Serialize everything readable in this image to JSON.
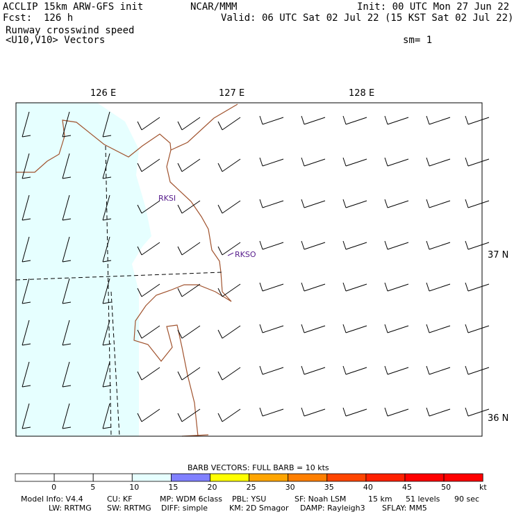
{
  "header": {
    "line1_left": "ACCLIP 15km ARW-GFS init",
    "line1_center": "NCAR/MMM",
    "line1_right": "Init: 00 UTC Mon 27 Jun 22",
    "line2_left": "Fcst:  126 h",
    "line2_right": "Valid: 06 UTC Sat 02 Jul 22 (15 KST Sat 02 Jul 22)",
    "line3_left": "Runway crosswind speed",
    "line4_left": "<U10,V10> Vectors",
    "line4_right": "sm= 1"
  },
  "axes": {
    "lon_labels": [
      "126 E",
      "127 E",
      "128 E"
    ],
    "lat_labels": [
      "37 N",
      "36 N"
    ]
  },
  "stations": [
    {
      "id": "RKSI",
      "color": "#551a8b"
    },
    {
      "id": "RKSO",
      "color": "#551a8b"
    }
  ],
  "barbs": {
    "title": "BARB VECTORS:  FULL BARB = 10 kts"
  },
  "colorbar": {
    "ticks": [
      "0",
      "5",
      "10",
      "15",
      "20",
      "25",
      "30",
      "35",
      "40",
      "45",
      "50"
    ],
    "unit": "kt",
    "colors": [
      "#ffffff",
      "#ffffff",
      "#ffffff",
      "#e6ffff",
      "#8080ff",
      "#ffff00",
      "#ffa500",
      "#ff7f00",
      "#ff4500",
      "#ff2000",
      "#ff0000",
      "#ff0000"
    ]
  },
  "footer": {
    "line1": [
      "Model Info: V4.4",
      "CU: KF",
      "MP: WDM 6class",
      "PBL: YSU",
      "SF: Noah LSM",
      "15 km",
      "51 levels",
      "90 sec"
    ],
    "line2": [
      "LW: RRTMG",
      "SW: RRTMG",
      "DIFF: simple",
      "KM: 2D Smagor",
      "DAMP: Rayleigh3",
      "SFLAY: MM5"
    ]
  },
  "colors": {
    "shade": "#e6ffff",
    "coast": "#a0522d",
    "station": "#551a8b"
  }
}
